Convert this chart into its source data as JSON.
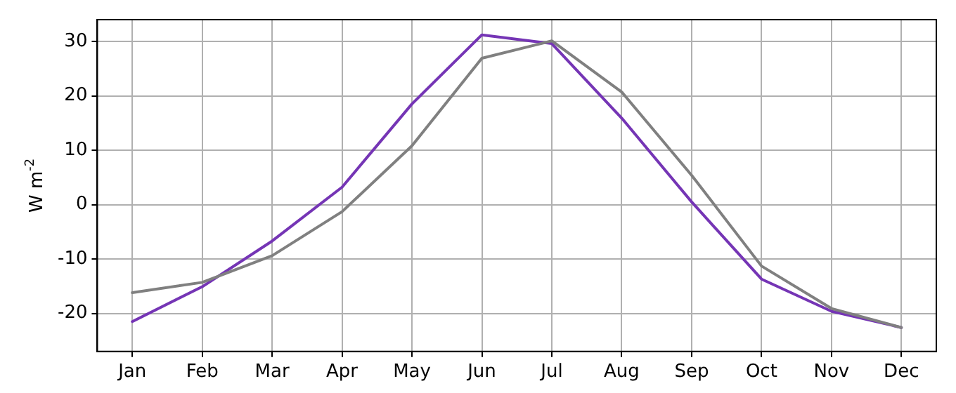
{
  "chart_data": {
    "type": "line",
    "ylabel": "W m$^{-2}$",
    "categories": [
      "Jan",
      "Feb",
      "Mar",
      "Apr",
      "May",
      "Jun",
      "Jul",
      "Aug",
      "Sep",
      "Oct",
      "Nov",
      "Dec"
    ],
    "series": [
      {
        "color": "#808080",
        "values": [
          -16.2,
          -14.3,
          -9.4,
          -1.3,
          10.8,
          26.9,
          30.1,
          20.7,
          5.4,
          -11.3,
          -19.1,
          -22.6
        ]
      },
      {
        "color": "#7535b5",
        "values": [
          -21.5,
          -15.1,
          -6.7,
          3.2,
          18.5,
          31.2,
          29.6,
          15.9,
          0.5,
          -13.7,
          -19.6,
          -22.6
        ]
      }
    ],
    "ylim": [
      -27,
      34
    ],
    "yticks": [
      -20,
      -10,
      0,
      10,
      20,
      30
    ],
    "grid": true,
    "legend": false,
    "marker": "none",
    "line_style": "solid"
  }
}
